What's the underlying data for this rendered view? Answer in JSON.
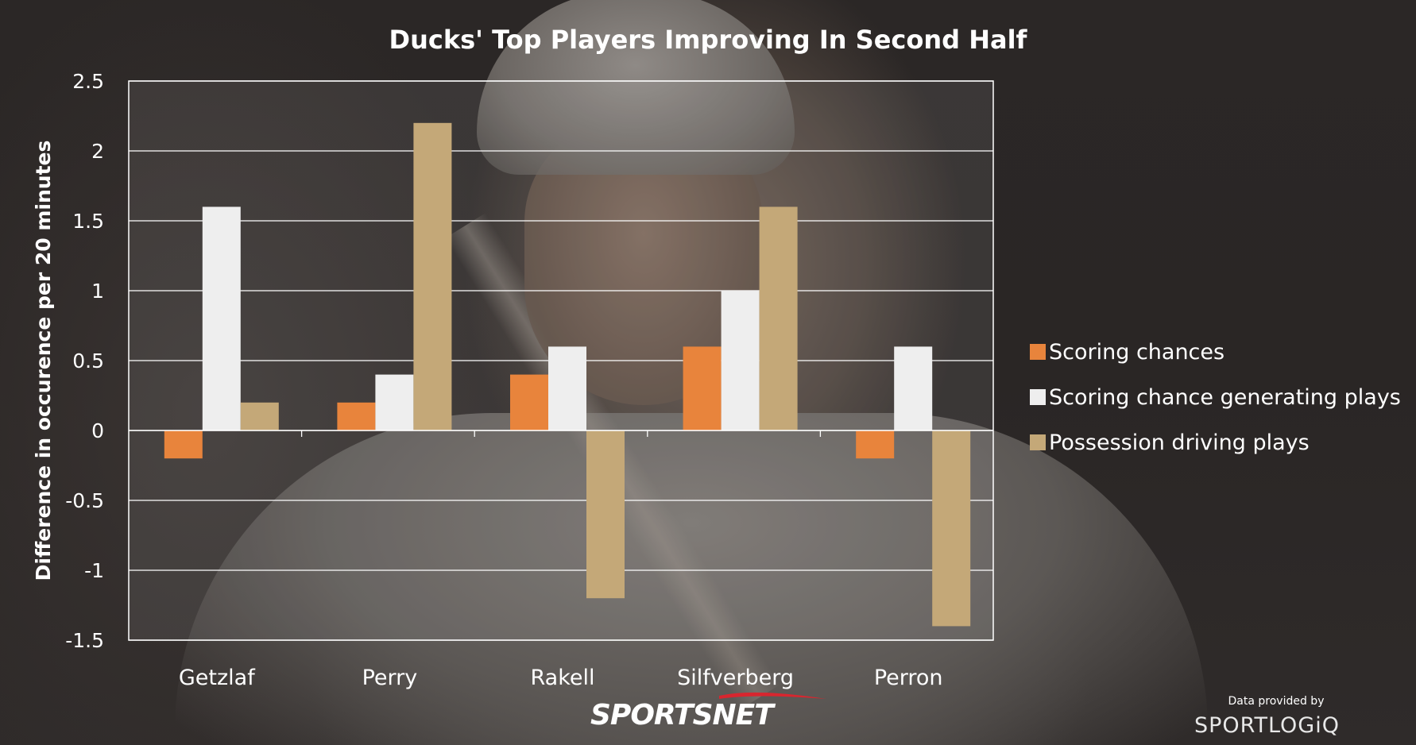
{
  "chart_data": {
    "type": "bar",
    "title": "Ducks' Top Players Improving In Second Half",
    "xlabel": "",
    "ylabel": "Difference in occurence per 20 minutes",
    "ylim": [
      -1.5,
      2.5
    ],
    "yticks": [
      2.5,
      2,
      1.5,
      1,
      0.5,
      0,
      -0.5,
      -1,
      -1.5
    ],
    "ytick_labels": [
      "2.5",
      "2",
      "1.5",
      "1",
      "0.5",
      "0",
      "-0.5",
      "-1",
      "-1.5"
    ],
    "grid": true,
    "legend_position": "right",
    "categories": [
      "Getzlaf",
      "Perry",
      "Rakell",
      "Silfverberg",
      "Perron"
    ],
    "series": [
      {
        "name": "Scoring chances",
        "color": "#e8843c",
        "values": [
          -0.2,
          0.2,
          0.4,
          0.6,
          -0.2
        ]
      },
      {
        "name": "Scoring chance generating plays",
        "color": "#eeeeee",
        "values": [
          1.6,
          0.4,
          0.6,
          1.0,
          0.6
        ]
      },
      {
        "name": "Possession driving plays",
        "color": "#c4a878",
        "values": [
          0.2,
          2.2,
          -1.2,
          1.6,
          -1.4
        ]
      }
    ]
  },
  "branding": {
    "logo_text": "SPORTSNET",
    "data_note": "Data provided by",
    "partner_logo_text": "SPORTLOGiQ",
    "logo_color": "#ffffff",
    "logo_accent": "#d8262f"
  }
}
